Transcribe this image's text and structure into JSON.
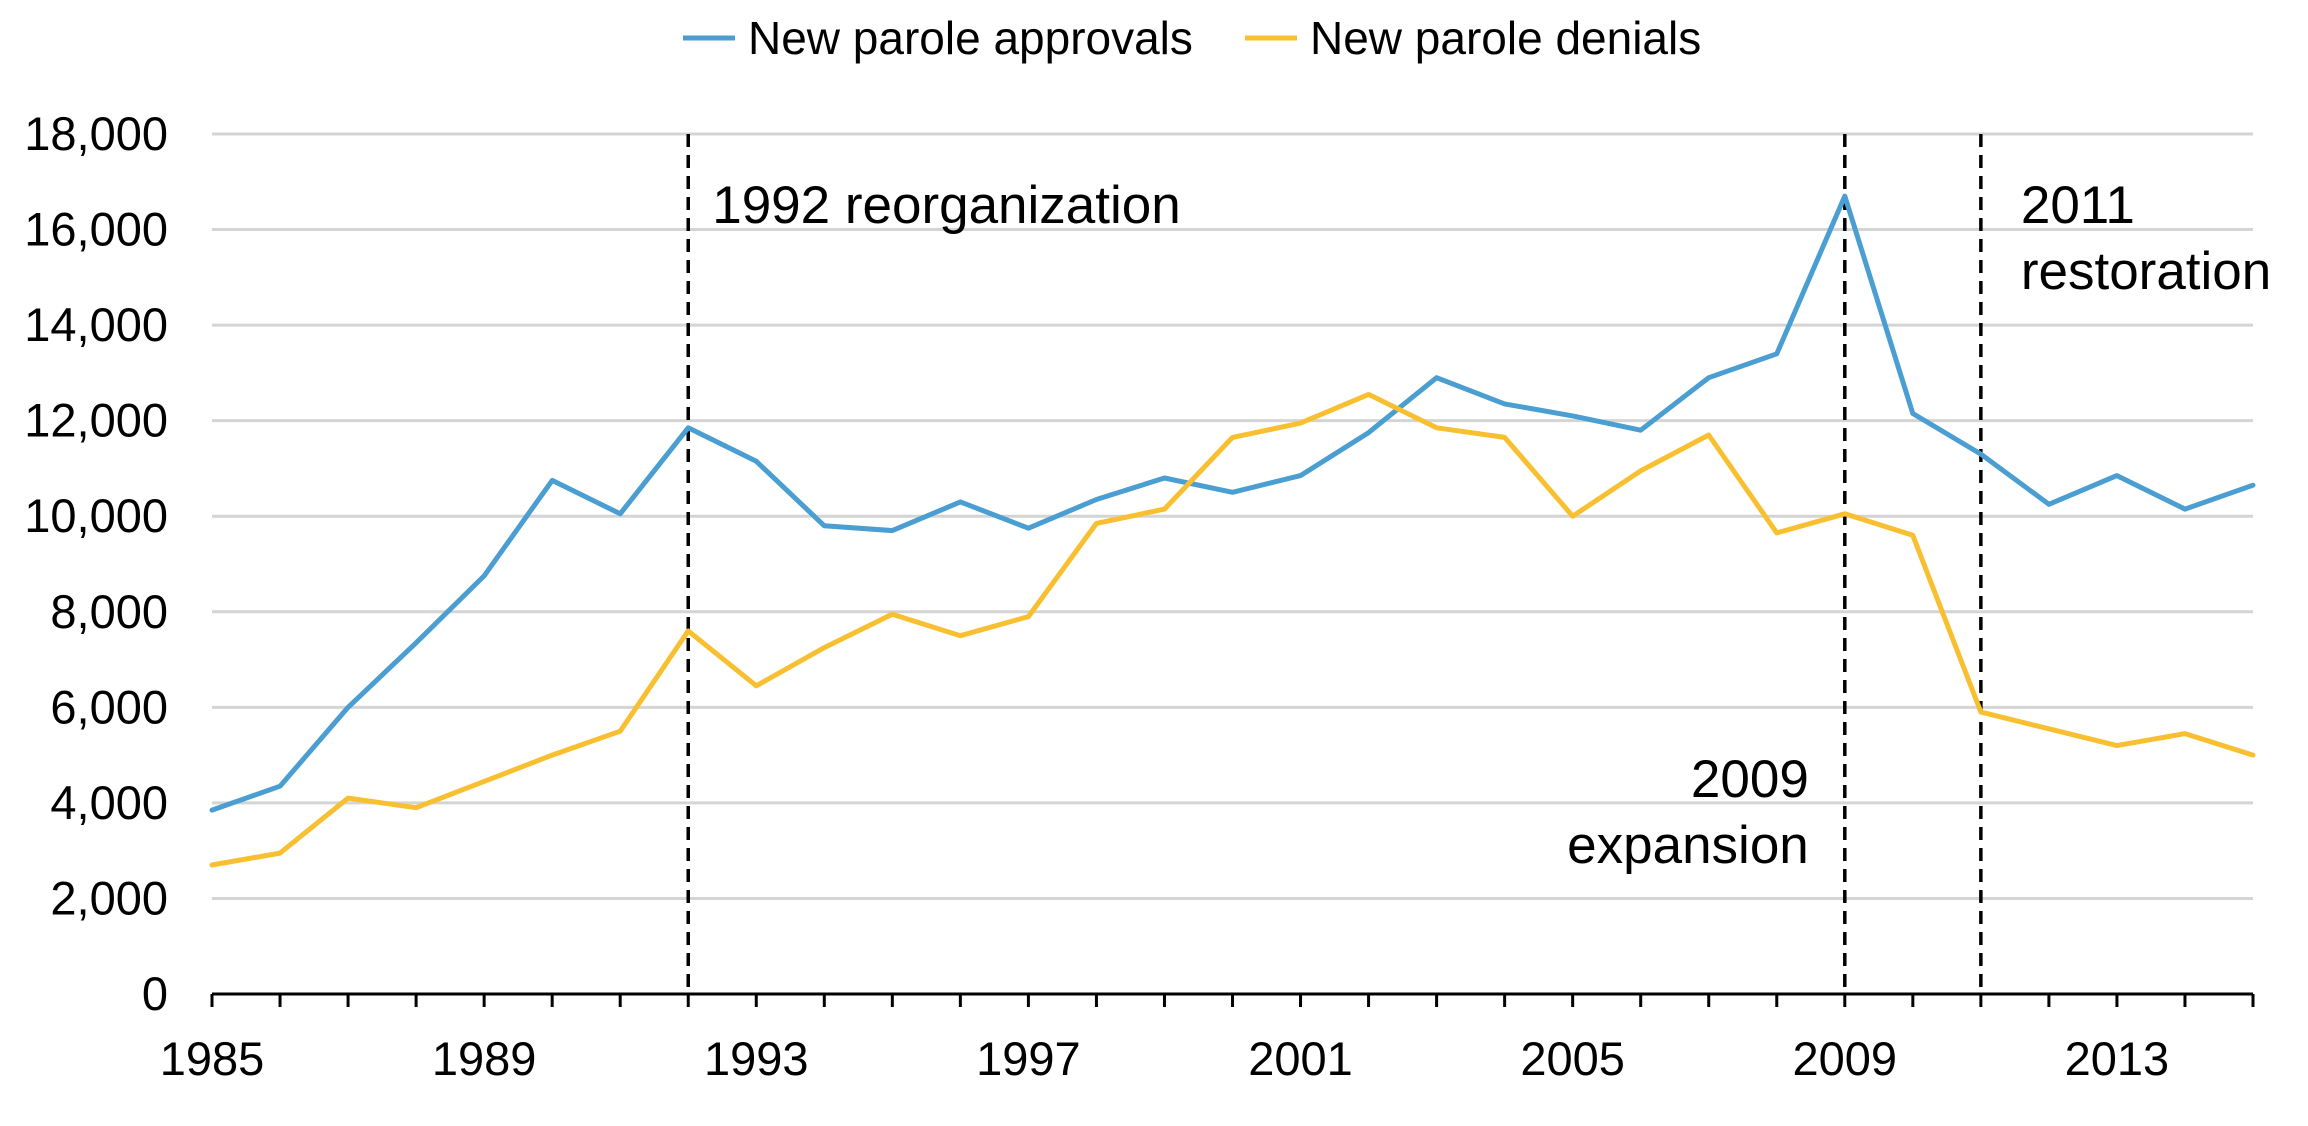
{
  "chart_data": {
    "type": "line",
    "x": [
      1985,
      1986,
      1987,
      1988,
      1989,
      1990,
      1991,
      1992,
      1993,
      1994,
      1995,
      1996,
      1997,
      1998,
      1999,
      2000,
      2001,
      2002,
      2003,
      2004,
      2005,
      2006,
      2007,
      2008,
      2009,
      2010,
      2011,
      2012,
      2013,
      2014,
      2015
    ],
    "series": [
      {
        "name": "New parole approvals",
        "color": "#4a9ed1",
        "values": [
          3850,
          4350,
          6000,
          7350,
          8750,
          10750,
          10050,
          11850,
          11150,
          9800,
          9700,
          10300,
          9750,
          10350,
          10800,
          10500,
          10850,
          11750,
          12900,
          12350,
          12100,
          11800,
          12900,
          13400,
          16700,
          12150,
          11300,
          10250,
          10850,
          10150,
          10650
        ]
      },
      {
        "name": "New parole denials",
        "color": "#f8c030",
        "values": [
          2700,
          2950,
          4100,
          3900,
          4450,
          5000,
          5500,
          7600,
          6450,
          7250,
          7950,
          7500,
          7900,
          9850,
          10150,
          11650,
          11950,
          12550,
          11850,
          11650,
          10000,
          10950,
          11700,
          9650,
          10050,
          9600,
          5900,
          5550,
          5200,
          5450,
          5000
        ]
      }
    ],
    "xticks": [
      "1985",
      "1989",
      "1993",
      "1997",
      "2001",
      "2005",
      "2009",
      "2013"
    ],
    "yticks": [
      "0",
      "2,000",
      "4,000",
      "6,000",
      "8,000",
      "10,000",
      "12,000",
      "14,000",
      "16,000",
      "18,000"
    ],
    "xlim": [
      1985,
      2015
    ],
    "ylim": [
      0,
      18000
    ],
    "grid": "horizontal",
    "legend": "top-center",
    "annotations": [
      {
        "x": 1992,
        "lines": [
          "1992 reorganization"
        ],
        "align": "right-of-line"
      },
      {
        "x": 2009,
        "lines": [
          "2009",
          "expansion"
        ],
        "align": "left-of-line"
      },
      {
        "x": 2011,
        "lines": [
          "2011",
          "restoration"
        ],
        "align": "right-of-line"
      }
    ]
  }
}
